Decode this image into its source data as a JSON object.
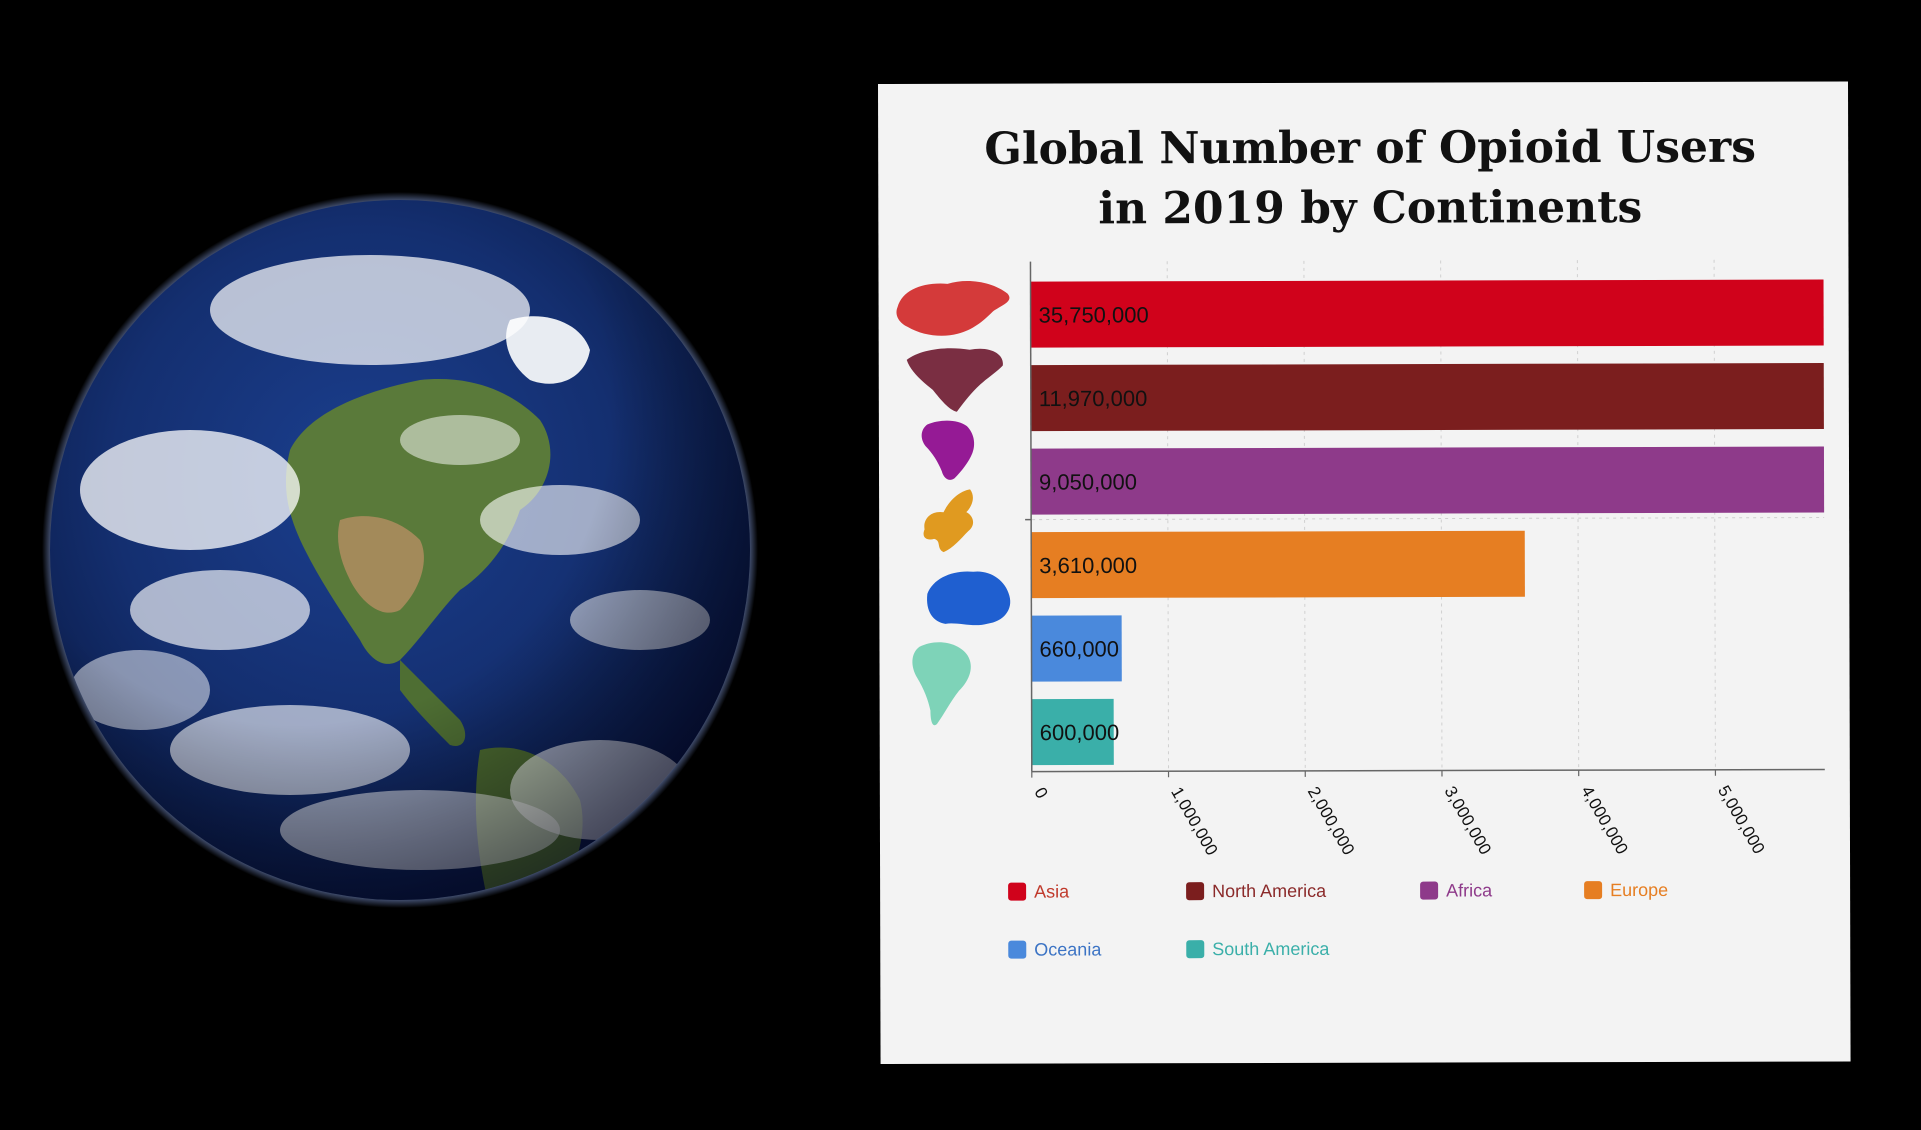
{
  "chart_data": {
    "type": "bar",
    "orientation": "horizontal",
    "title_lines": [
      "Global Number of Opioid Users",
      "in 2019 by Continents"
    ],
    "categories": [
      "Asia",
      "North America",
      "Africa",
      "Europe",
      "Oceania",
      "South America"
    ],
    "values": [
      35750000,
      11970000,
      9050000,
      3610000,
      660000,
      600000
    ],
    "value_labels": [
      "35,750,000",
      "11,970,000",
      "9,050,000",
      "3,610,000",
      "660,000",
      "600,000"
    ],
    "colors": [
      "#d0021b",
      "#7b1e1e",
      "#8e3a8a",
      "#e67e22",
      "#4a89dc",
      "#3aafa9"
    ],
    "x_ticks": [
      0,
      1000000,
      2000000,
      3000000,
      4000000,
      5000000
    ],
    "x_tick_labels": [
      "0",
      "1,000,000",
      "2,000,000",
      "3,000,000",
      "4,000,000",
      "5,000,000"
    ],
    "xlim": [
      0,
      5800000
    ],
    "xlabel": "",
    "ylabel": "",
    "grid": "vertical dashed",
    "legend_position": "bottom",
    "legend": [
      {
        "label": "Asia",
        "color": "#d0021b",
        "text_color": "#c0392b"
      },
      {
        "label": "North America",
        "color": "#7b1e1e",
        "text_color": "#8b2a2a"
      },
      {
        "label": "Africa",
        "color": "#8e3a8a",
        "text_color": "#8e3a8a"
      },
      {
        "label": "Europe",
        "color": "#e67e22",
        "text_color": "#e67e22"
      },
      {
        "label": "Oceania",
        "color": "#4a89dc",
        "text_color": "#3b73c4"
      },
      {
        "label": "South America",
        "color": "#3aafa9",
        "text_color": "#3aafa9"
      }
    ],
    "continent_icons": [
      {
        "name": "asia-map-icon",
        "color": "#d43a3a"
      },
      {
        "name": "north-america-map-icon",
        "color": "#7a2e42"
      },
      {
        "name": "africa-map-icon",
        "color": "#951a95"
      },
      {
        "name": "europe-map-icon",
        "color": "#e09a20"
      },
      {
        "name": "oceania-map-icon",
        "color": "#1f5fd0"
      },
      {
        "name": "south-america-map-icon",
        "color": "#7ed3b8"
      }
    ]
  },
  "background": {
    "earth_image": "earth-globe",
    "page_color": "#000000",
    "card_color": "#f3f3f3"
  }
}
